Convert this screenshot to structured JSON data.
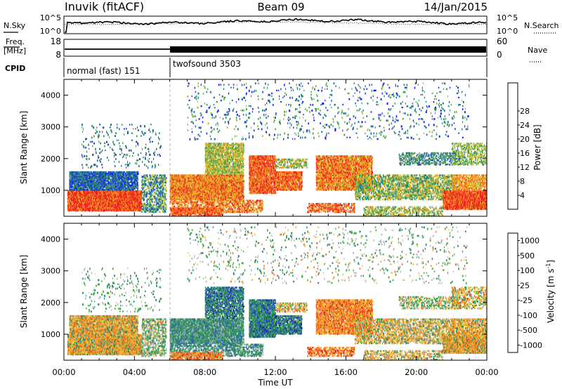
{
  "header": {
    "station": "Inuvik (fitACF)",
    "beam": "Beam 09",
    "date": "14/Jan/2015"
  },
  "noise_panel": {
    "left_label": "N.Sky",
    "right_label": "N.Search",
    "left_ticks": [
      "10^5",
      "10^0"
    ],
    "right_ticks": [
      "10^5",
      "10^0"
    ]
  },
  "freq_panel": {
    "left_label_line1": "Freq.",
    "left_label_line2": "[MHz]",
    "right_label": "Nave",
    "left_ticks": [
      "18",
      "8"
    ],
    "right_ticks": [
      "60",
      "0"
    ]
  },
  "cpid_panel": {
    "label": "CPID",
    "segments": [
      {
        "name": "normal (fast) 151",
        "start_hour": 0,
        "end_hour": 6
      },
      {
        "name": "twofsound 3503",
        "start_hour": 6,
        "end_hour": 24
      }
    ]
  },
  "chart_data": [
    {
      "type": "heatmap",
      "title": "",
      "xlabel": "",
      "ylabel": "Slant Range [km]",
      "xlim": [
        0,
        24
      ],
      "ylim": [
        180,
        4500
      ],
      "yticks": [
        "1000",
        "2000",
        "3000",
        "4000"
      ],
      "colorbar": {
        "label": "Power [dB]",
        "ticks": [
          "4",
          "8",
          "12",
          "16",
          "20",
          "24",
          "28"
        ],
        "colors": [
          "#1a1aff",
          "#2050c0",
          "#207e7e",
          "#3a9a60",
          "#80b848",
          "#d8c830",
          "#f0a020",
          "#f06020",
          "#f02020"
        ]
      }
    },
    {
      "type": "heatmap",
      "title": "",
      "xlabel": "Time UT",
      "ylabel": "Slant Range [km]",
      "xlim": [
        0,
        24
      ],
      "ylim": [
        180,
        4500
      ],
      "xticks": [
        "00:00",
        "04:00",
        "08:00",
        "12:00",
        "16:00",
        "20:00",
        "00:00"
      ],
      "yticks": [
        "1000",
        "2000",
        "3000",
        "4000"
      ],
      "colorbar": {
        "label": "Velocity [m s",
        "label_sup": "-1",
        "label_end": "]",
        "ticks": [
          "1000",
          "500",
          "100",
          "25",
          "-25",
          "-100",
          "-500",
          "-1000"
        ],
        "colors": [
          "#1830a0",
          "#2e5ab8",
          "#2f8a70",
          "#48b040",
          "#bcbcbc",
          "#e8d040",
          "#f0a030",
          "#f07020",
          "#e82020"
        ]
      }
    }
  ]
}
